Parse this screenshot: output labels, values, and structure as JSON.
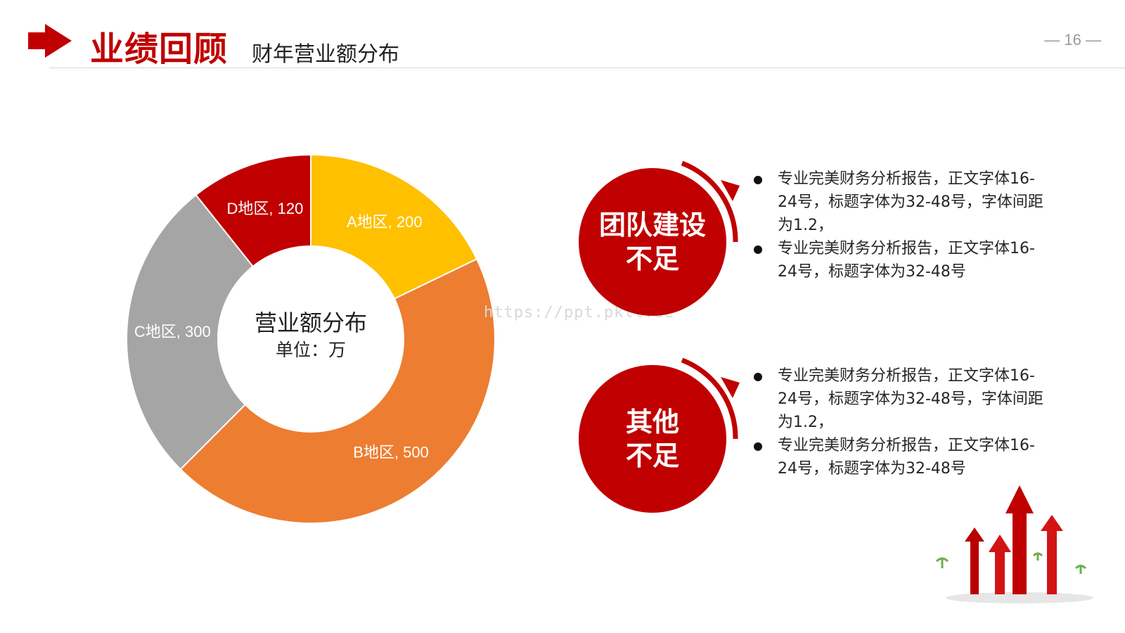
{
  "header": {
    "title": "业绩回顾",
    "subtitle": "财年营业额分布",
    "page_number": "— 16 —"
  },
  "watermark": "https://ppt.pkll.de",
  "chart_data": {
    "type": "pie",
    "variant": "donut",
    "center_title": "营业额分布",
    "center_unit": "单位：万",
    "slices": [
      {
        "category": "A地区",
        "value": 200,
        "label": "A地区, 200",
        "color": "#ffc000"
      },
      {
        "category": "B地区",
        "value": 500,
        "label": "B地区, 500",
        "color": "#ed7d31"
      },
      {
        "category": "C地区",
        "value": 300,
        "label": "C地区, 300",
        "color": "#a5a5a5"
      },
      {
        "category": "D地区",
        "value": 120,
        "label": "D地区, 120",
        "color": "#c00000"
      }
    ]
  },
  "sections": [
    {
      "badge_line1": "团队建设",
      "badge_line2": "不足",
      "bullets": [
        "专业完美财务分析报告，正文字体16-24号，标题字体为32-48号，字体间距为1.2，",
        "专业完美财务分析报告，正文字体16-24号，标题字体为32-48号"
      ]
    },
    {
      "badge_line1": "其他",
      "badge_line2": "不足",
      "bullets": [
        "专业完美财务分析报告，正文字体16-24号，标题字体为32-48号，字体间距为1.2，",
        "专业完美财务分析报告，正文字体16-24号，标题字体为32-48号"
      ]
    }
  ],
  "colors": {
    "accent": "#c00000",
    "badge": "#c00000"
  },
  "icons": [
    "arrow-right-icon",
    "growth-arrows-illustration"
  ]
}
